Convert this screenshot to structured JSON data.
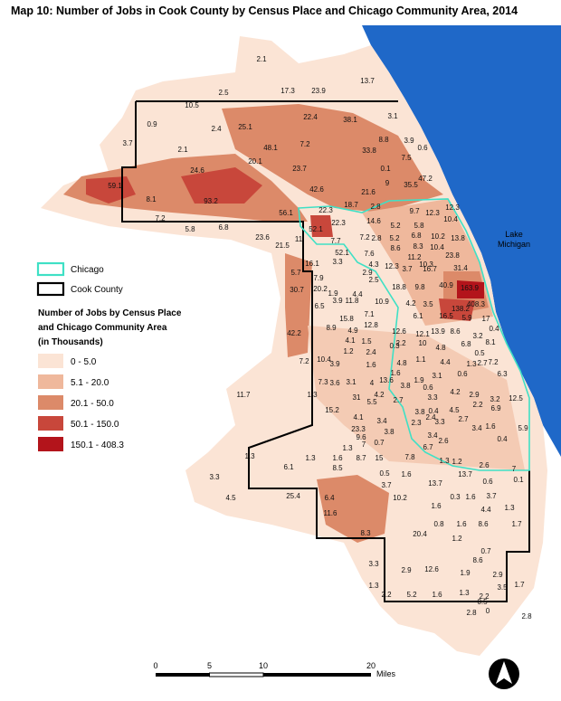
{
  "title": "Map 10: Number of Jobs in Cook County by Census Place and Chicago Community Area, 2014",
  "lake_label": [
    "Lake",
    "Michigan"
  ],
  "legend": {
    "outlines": [
      {
        "label": "Chicago",
        "color": "#3fe0c5"
      },
      {
        "label": "Cook County",
        "color": "#000000"
      }
    ],
    "title_lines": [
      "Number of Jobs by Census Place",
      "and Chicago Community Area",
      "(in Thousands)"
    ],
    "classes": [
      {
        "label": "0 - 5.0",
        "color": "#fbe4d5"
      },
      {
        "label": "5.1 - 20.0",
        "color": "#efb89c"
      },
      {
        "label": "20.1 - 50.0",
        "color": "#dc8a69"
      },
      {
        "label": "50.1 - 150.0",
        "color": "#c8473b"
      },
      {
        "label": "150.1 - 408.3",
        "color": "#b3141b"
      }
    ]
  },
  "scale_bar": {
    "ticks": [
      "0",
      "5",
      "10",
      "20"
    ],
    "unit": "Miles"
  },
  "map_labels": [
    "2.1",
    "13.7",
    "2.5",
    "17.3",
    "23.9",
    "10.5",
    "0.9",
    "2.4",
    "25.1",
    "22.4",
    "38.1",
    "3.1",
    "3.7",
    "2.1",
    "48.1",
    "7.2",
    "8.8",
    "3.9",
    "0.6",
    "20.1",
    "33.8",
    "7.5",
    "23.7",
    "0.1",
    "24.6",
    "59.1",
    "47.2",
    "9",
    "35.5",
    "42.6",
    "21.6",
    "8.1",
    "93.2",
    "18.7",
    "2.8",
    "12.3",
    "9.7",
    "56.1",
    "22.3",
    "7.2",
    "12.3",
    "10.4",
    "5.8",
    "6.8",
    "52.1",
    "22.3",
    "14.6",
    "5.2",
    "5.8",
    "23.6",
    "11",
    "7.2",
    "2.8",
    "7.7",
    "5.2",
    "6.8",
    "10.2",
    "13.8",
    "21.5",
    "8.3",
    "52.1",
    "7.6",
    "8.6",
    "11.2",
    "10.4",
    "10.3",
    "23.8",
    "16.1",
    "3.3",
    "4.3",
    "12.3",
    "3.7",
    "16.7",
    "31.4",
    "5.7",
    "2.9",
    "7.9",
    "2.5",
    "18.8",
    "9.8",
    "40.9",
    "163.9",
    "30.7",
    "20.2",
    "1.9",
    "4.4",
    "4.2",
    "3.5",
    "408.3",
    "3.9",
    "11.8",
    "10.9",
    "138.2",
    "6.5",
    "7.1",
    "6.1",
    "15.8",
    "16.5",
    "5.9",
    "17",
    "42.2",
    "8.9",
    "4.9",
    "12.8",
    "12.6",
    "12.1",
    "13.9",
    "8.6",
    "0.4",
    "4.1",
    "1.5",
    "2.2",
    "10",
    "4.8",
    "6.8",
    "3.2",
    "1.2",
    "2.4",
    "0.3",
    "8.1",
    "10.4",
    "7.2",
    "3.9",
    "1.6",
    "4.8",
    "1.1",
    "4.4",
    "0.5",
    "2.7",
    "7.2",
    "1.3",
    "1.6",
    "1.9",
    "3.1",
    "0.6",
    "6.3",
    "3.8",
    "0.6",
    "7.3",
    "3.6",
    "3.1",
    "4",
    "13.6",
    "11.7",
    "1.3",
    "31",
    "4.2",
    "4.2",
    "2.9",
    "3.2",
    "12.5",
    "5.5",
    "2.7",
    "3.3",
    "2.2",
    "6.9",
    "15.2",
    "4.1",
    "0.4",
    "2.4",
    "4.5",
    "3.8",
    "23.3",
    "3.4",
    "2.3",
    "3.3",
    "2.7",
    "1.6",
    "5.9",
    "9.6",
    "3.8",
    "3.4",
    "3.4",
    "2.6",
    "0.7",
    "6.7",
    "0.4",
    "1.3",
    "7",
    "1.3",
    "1.3",
    "1.6",
    "8.7",
    "15",
    "7.8",
    "1.3",
    "1.2",
    "2.6",
    "7",
    "6.1",
    "8.5",
    "0.5",
    "1.6",
    "13.7",
    "3.3",
    "0.6",
    "0.1",
    "3.7",
    "13.7",
    "4.5",
    "25.4",
    "6.4",
    "10.2",
    "0.3",
    "1.6",
    "3.7",
    "1.6",
    "1.3",
    "11.6",
    "4.4",
    "0.8",
    "1.6",
    "8.6",
    "1.7",
    "20.4",
    "8.3",
    "1.2",
    "0.7",
    "3.3",
    "8.6",
    "2.9",
    "12.6",
    "1.9",
    "2.9",
    "3.5",
    "1.7",
    "1.3",
    "2.2",
    "2.2",
    "5.2",
    "1.6",
    "1.3",
    "0.5",
    "2.8",
    "0",
    "2.8"
  ]
}
